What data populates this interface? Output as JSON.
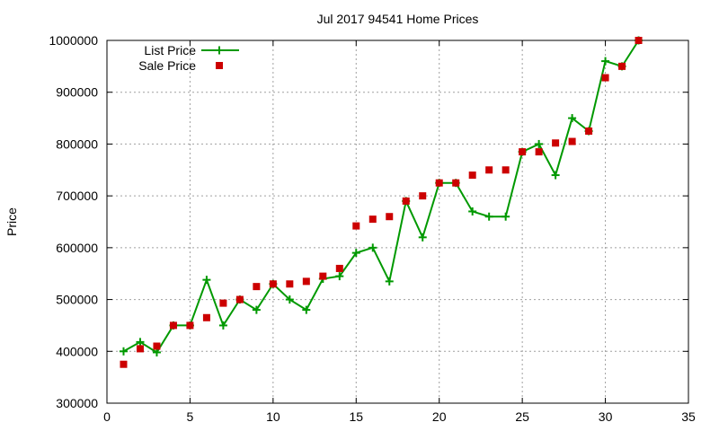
{
  "chart_data": {
    "type": "line",
    "title": "Jul 2017 94541 Home Prices",
    "xlabel": "",
    "ylabel": "Price",
    "xlim": [
      0,
      35
    ],
    "ylim": [
      300000,
      1000000
    ],
    "x_ticks": [
      0,
      5,
      10,
      15,
      20,
      25,
      30,
      35
    ],
    "y_ticks": [
      300000,
      400000,
      500000,
      600000,
      700000,
      800000,
      900000,
      1000000
    ],
    "grid": true,
    "legend_position": "top-left",
    "series": [
      {
        "name": "List Price",
        "style": "line-plus",
        "color": "#009900",
        "x": [
          1,
          2,
          3,
          4,
          5,
          6,
          7,
          8,
          9,
          10,
          11,
          12,
          13,
          14,
          15,
          16,
          17,
          18,
          19,
          20,
          21,
          22,
          23,
          24,
          25,
          26,
          27,
          28,
          29,
          30,
          31,
          32
        ],
        "y": [
          400000,
          418000,
          398000,
          450000,
          450000,
          538000,
          450000,
          500000,
          480000,
          530000,
          500000,
          480000,
          540000,
          545000,
          590000,
          600000,
          535000,
          690000,
          620000,
          725000,
          725000,
          670000,
          660000,
          660000,
          785000,
          800000,
          740000,
          850000,
          825000,
          960000,
          950000,
          1000000
        ]
      },
      {
        "name": "Sale Price",
        "style": "square-marker",
        "color": "#cc0000",
        "x": [
          1,
          2,
          3,
          4,
          5,
          6,
          7,
          8,
          9,
          10,
          11,
          12,
          13,
          14,
          15,
          16,
          17,
          18,
          19,
          20,
          21,
          22,
          23,
          24,
          25,
          26,
          27,
          28,
          29,
          30,
          31,
          32
        ],
        "y": [
          375000,
          405000,
          410000,
          450000,
          450000,
          465000,
          493000,
          500000,
          525000,
          530000,
          530000,
          535000,
          545000,
          560000,
          642000,
          655000,
          660000,
          690000,
          700000,
          725000,
          725000,
          740000,
          750000,
          750000,
          785000,
          785000,
          802000,
          805000,
          825000,
          928000,
          950000,
          1000000
        ]
      }
    ]
  }
}
